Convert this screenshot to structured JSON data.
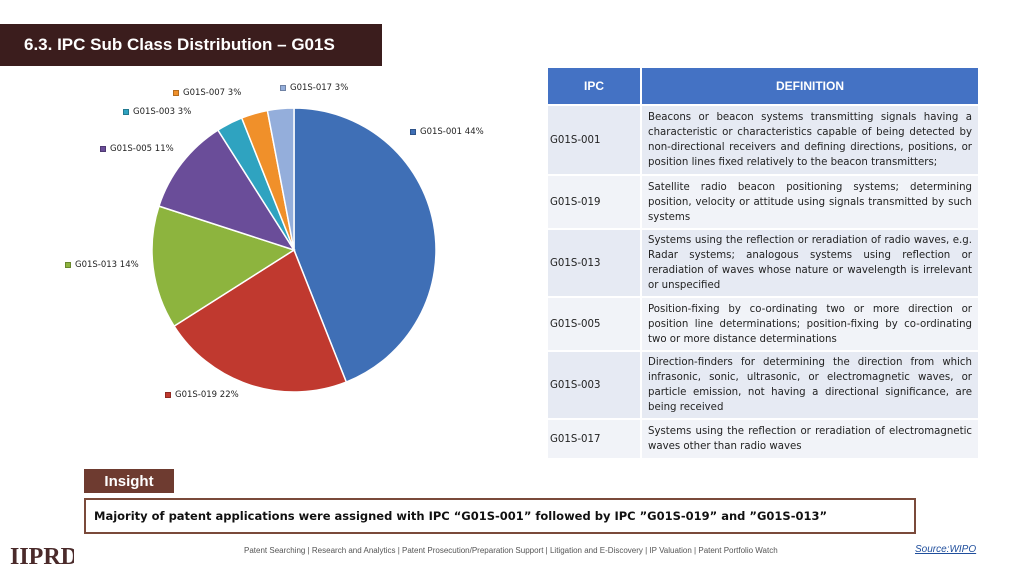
{
  "header": {
    "title": "6.3. IPC Sub Class Distribution – G01S"
  },
  "chart_data": {
    "type": "pie",
    "title": "",
    "slices": [
      {
        "label": "G01S-001 44%",
        "name": "G01S-001",
        "value": 44,
        "color": "#3f6fb6"
      },
      {
        "label": "G01S-019 22%",
        "name": "G01S-019",
        "value": 22,
        "color": "#c0392f"
      },
      {
        "label": "G01S-013 14%",
        "name": "G01S-013",
        "value": 14,
        "color": "#8db43e"
      },
      {
        "label": "G01S-005 11%",
        "name": "G01S-005",
        "value": 11,
        "color": "#6a4d99"
      },
      {
        "label": "G01S-003 3%",
        "name": "G01S-003",
        "value": 3,
        "color": "#2fa3c0"
      },
      {
        "label": "G01S-007 3%",
        "name": "G01S-007",
        "value": 3,
        "color": "#f0902a"
      },
      {
        "label": "G01S-017 3%",
        "name": "G01S-017",
        "value": 3,
        "color": "#94aedb"
      }
    ]
  },
  "table": {
    "headers": [
      "IPC",
      "DEFINITION"
    ],
    "rows": [
      {
        "code": "G01S-001",
        "definition": "Beacons or beacon systems transmitting signals having a characteristic or characteristics capable of being detected by non-directional receivers and defining directions, positions, or position lines fixed relatively to the beacon transmitters;"
      },
      {
        "code": "G01S-019",
        "definition": "Satellite radio beacon positioning systems; determining position, velocity or attitude using signals transmitted by such systems"
      },
      {
        "code": "G01S-013",
        "definition": "Systems using the reflection or reradiation of radio waves, e.g. Radar systems; analogous systems using reflection or reradiation of waves whose nature or wavelength is irrelevant or unspecified"
      },
      {
        "code": "G01S-005",
        "definition": "Position-fixing by co-ordinating two or more direction or position line determinations; position-fixing by co-ordinating two or more distance determinations"
      },
      {
        "code": "G01S-003",
        "definition": "Direction-finders for determining the direction from which infrasonic, sonic, ultrasonic, or electromagnetic waves, or particle emission, not having a directional significance, are being received"
      },
      {
        "code": "G01S-017",
        "definition": "Systems using the reflection or reradiation of electromagnetic waves other than radio waves"
      }
    ]
  },
  "insight": {
    "tab_label": "Insight",
    "text": "Majority of patent applications were assigned with IPC “G01S-001” followed by IPC ”G01S-019” and ”G01S-013”"
  },
  "footer": {
    "logo_text": "IIPRD",
    "services": "Patent Searching | Research and Analytics | Patent Prosecution/Preparation Support | Litigation and E-Discovery | IP Valuation | Patent Portfolio Watch",
    "source": "Source:WIPO"
  }
}
